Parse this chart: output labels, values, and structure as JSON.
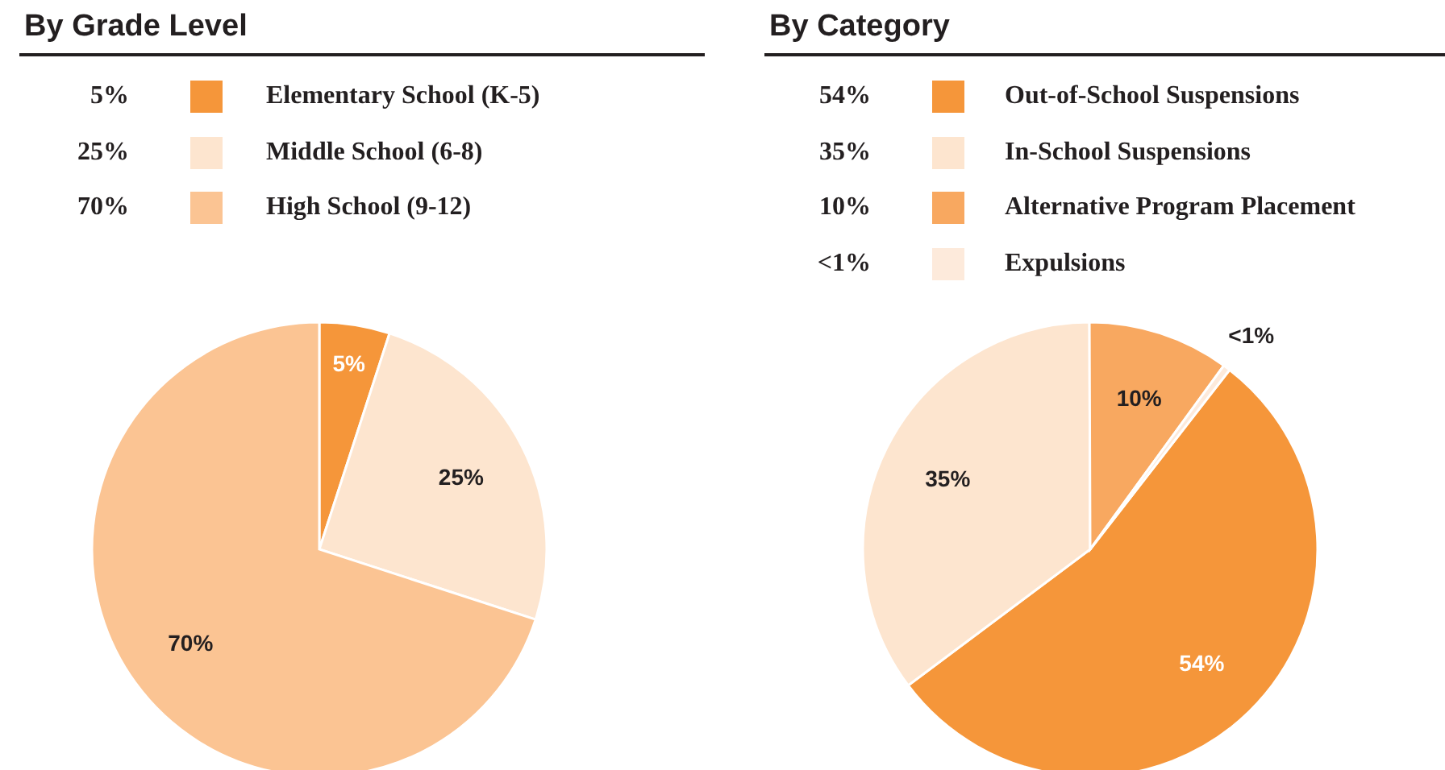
{
  "chart_data": [
    {
      "type": "pie",
      "title": "By Grade Level",
      "categories": [
        "Elementary School (K-5)",
        "Middle School (6-8)",
        "High School (9-12)"
      ],
      "values": [
        5,
        25,
        70
      ],
      "value_labels": [
        "5%",
        "25%",
        "70%"
      ],
      "colors": [
        "#f5963a",
        "#fde5cf",
        "#fbc493"
      ],
      "legend": "top"
    },
    {
      "type": "pie",
      "title": "By Category",
      "categories": [
        "Out-of-School Suspensions",
        "In-School Suspensions",
        "Alternative Program Placement",
        "Expulsions"
      ],
      "values": [
        54,
        35,
        10,
        0.5
      ],
      "value_labels": [
        "54%",
        "35%",
        "10%",
        "<1%"
      ],
      "colors": [
        "#f5963a",
        "#fde5cf",
        "#f8a860",
        "#fdeadb"
      ],
      "legend": "top"
    }
  ]
}
